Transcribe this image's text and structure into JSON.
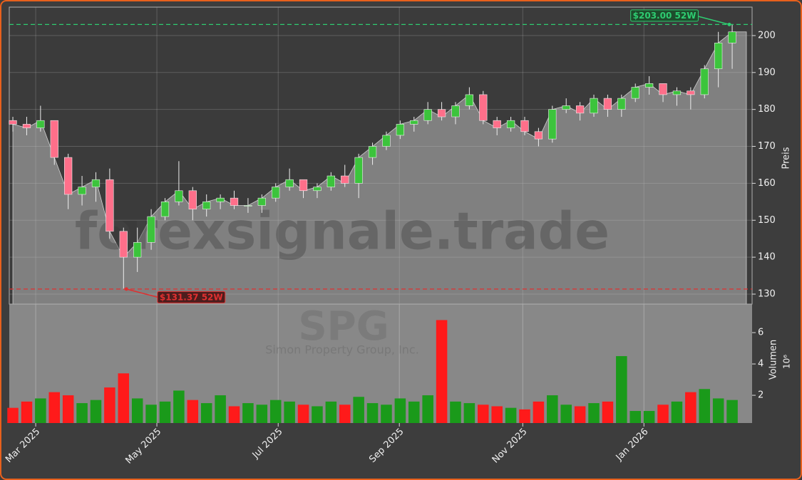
{
  "chart_data": {
    "type": "candlestick",
    "watermark": "forexsignale.trade",
    "symbol": "SPG",
    "company": "Simon Property Group, Inc.",
    "ylabel": "Preis",
    "open": [
      177,
      176,
      175,
      177,
      167,
      157,
      159,
      161,
      147,
      140,
      144,
      151,
      155,
      158,
      153,
      155,
      156,
      154,
      154,
      156,
      159,
      161,
      158,
      159,
      162,
      160,
      167,
      170,
      173,
      176,
      177,
      180,
      178,
      181,
      184,
      177,
      175,
      177,
      174,
      172,
      180,
      181,
      179,
      183,
      180,
      183,
      186,
      187,
      184,
      185,
      184,
      191,
      198
    ],
    "high": [
      178,
      178,
      181,
      177,
      168,
      162,
      163,
      164,
      148,
      148,
      153,
      156,
      166,
      159,
      157,
      157,
      158,
      156,
      157,
      160,
      164,
      161,
      160,
      163,
      165,
      168,
      171,
      174,
      177,
      178,
      182,
      182,
      182,
      186,
      185,
      178,
      178,
      178,
      175,
      181,
      183,
      182,
      184,
      184,
      184,
      187,
      189,
      187,
      186,
      186,
      192,
      201,
      203
    ],
    "low": [
      174,
      173,
      174,
      165,
      153,
      154,
      155,
      145,
      131.37,
      136,
      142,
      150,
      154,
      150,
      151,
      153,
      153,
      152,
      152,
      155,
      158,
      156,
      156,
      158,
      159,
      156,
      165,
      169,
      172,
      174,
      176,
      177,
      176,
      180,
      176,
      173,
      174,
      173,
      170,
      171,
      179,
      177,
      178,
      178,
      178,
      182,
      184,
      182,
      181,
      180,
      183,
      186,
      191
    ],
    "close": [
      176,
      175,
      177,
      167,
      157,
      159,
      161,
      147,
      140,
      144,
      151,
      155,
      158,
      153,
      155,
      156,
      154,
      154,
      156,
      159,
      161,
      158,
      159,
      162,
      160,
      167,
      170,
      173,
      176,
      177,
      180,
      178,
      181,
      184,
      177,
      175,
      177,
      174,
      172,
      180,
      181,
      179,
      183,
      180,
      183,
      186,
      187,
      184,
      185,
      184,
      191,
      198,
      201
    ],
    "up_color": "#3cc43c",
    "down_color": "#ff6f8a",
    "area_color": "#808080",
    "xlim": [
      -0.26,
      53.44
    ],
    "xticks": [
      {
        "value": 1.65,
        "label": "Mar 2025"
      },
      {
        "value": 10.41,
        "label": "May 2025"
      },
      {
        "value": 19.18,
        "label": "Jul 2025"
      },
      {
        "value": 27.94,
        "label": "Sep 2025"
      },
      {
        "value": 36.86,
        "label": "Nov 2025"
      },
      {
        "value": 45.62,
        "label": "Jan 2026"
      }
    ],
    "ylim": [
      127.3,
      207.7
    ],
    "yticks": [
      130,
      140,
      150,
      160,
      170,
      180,
      190,
      200
    ],
    "grid": true,
    "annotations": [
      {
        "value": 203.0,
        "label": "$203.00 52W",
        "color": "#2ecc71",
        "index": 52
      },
      {
        "value": 131.37,
        "label": "$131.37 52W",
        "color": "#e03030",
        "index": 8
      }
    ],
    "volume": {
      "label": "Volumen",
      "multiplier": "10⁶",
      "values": [
        1.2,
        1.6,
        1.8,
        2.2,
        2.0,
        1.5,
        1.7,
        2.5,
        3.4,
        1.8,
        1.4,
        1.6,
        2.3,
        1.7,
        1.5,
        2.0,
        1.3,
        1.5,
        1.4,
        1.7,
        1.6,
        1.4,
        1.3,
        1.6,
        1.4,
        1.9,
        1.5,
        1.4,
        1.8,
        1.6,
        2.0,
        6.8,
        1.6,
        1.5,
        1.4,
        1.3,
        1.2,
        1.1,
        1.6,
        2.0,
        1.4,
        1.3,
        1.5,
        1.6,
        4.5,
        1.0,
        1.0,
        1.4,
        1.6,
        2.2,
        2.4,
        1.8,
        1.7
      ],
      "up_color": "#1a9a1a",
      "down_color": "#ff1a1a",
      "ylim": [
        0.23,
        7.82
      ],
      "yticks": [
        2,
        4,
        6
      ]
    }
  }
}
